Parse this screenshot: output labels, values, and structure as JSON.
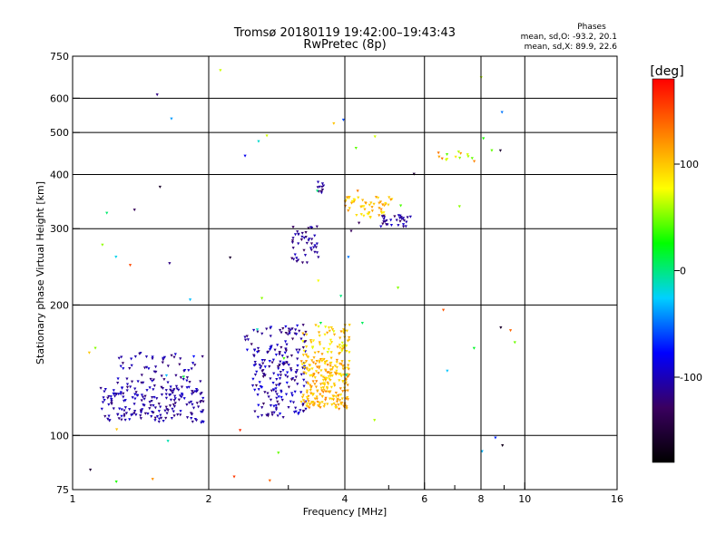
{
  "chart_data": {
    "type": "scatter",
    "title": "Tromsø 20180119 19:42:00–19:43:43",
    "subtitle": "RwPretec (8p)",
    "xlabel": "Frequency [MHz]",
    "ylabel": "Stationary phase Virtual Height [km]",
    "x_scale": "log",
    "y_scale": "log",
    "xlim": [
      1,
      16
    ],
    "ylim": [
      75,
      750
    ],
    "x_ticks": [
      1,
      2,
      4,
      6,
      8,
      10,
      16
    ],
    "x_tick_labels": [
      "1",
      "2",
      "4",
      "6",
      "8",
      "10",
      "16"
    ],
    "x_grid": [
      1,
      2,
      4,
      6,
      8,
      10
    ],
    "x_minor_ticks": [
      3,
      5,
      7,
      9
    ],
    "y_ticks": [
      75,
      100,
      200,
      300,
      400,
      500,
      600,
      750
    ],
    "y_tick_labels": [
      "75",
      "100",
      "200",
      "300",
      "400",
      "500",
      "600",
      "750"
    ],
    "y_grid": [
      100,
      200,
      300,
      400,
      500,
      600
    ],
    "grid": true,
    "stats_block": {
      "heading": "Phases",
      "line1": "mean, sd,O: -93.2, 20.1",
      "line2": "mean, sd,X:  89.9, 22.6"
    },
    "colorbar": {
      "label": "[deg]",
      "range": [
        -180,
        180
      ],
      "ticks": [
        100,
        0,
        -100
      ],
      "tick_labels": [
        "100",
        "0",
        "-100"
      ],
      "colors": [
        "#000000",
        "#3a0060",
        "#0000ff",
        "#00d0ff",
        "#00ff00",
        "#ffff00",
        "#ff8000",
        "#ff0000"
      ]
    },
    "clusters": [
      {
        "n": 190,
        "x": [
          1.15,
          1.95
        ],
        "y": [
          107,
          130
        ],
        "ph": [
          -125,
          -90
        ]
      },
      {
        "n": 60,
        "x": [
          1.25,
          1.95
        ],
        "y": [
          130,
          155
        ],
        "ph": [
          -125,
          -90
        ]
      },
      {
        "n": 160,
        "x": [
          2.5,
          3.3
        ],
        "y": [
          110,
          160
        ],
        "ph": [
          -130,
          -80
        ]
      },
      {
        "n": 50,
        "x": [
          2.4,
          3.3
        ],
        "y": [
          155,
          180
        ],
        "ph": [
          -130,
          -85
        ]
      },
      {
        "n": 220,
        "x": [
          3.2,
          4.1
        ],
        "y": [
          115,
          150
        ],
        "ph": [
          85,
          130
        ]
      },
      {
        "n": 70,
        "x": [
          3.2,
          4.1
        ],
        "y": [
          150,
          180
        ],
        "ph": [
          70,
          120
        ]
      },
      {
        "n": 45,
        "x": [
          3.05,
          3.5
        ],
        "y": [
          250,
          305
        ],
        "ph": [
          -130,
          -95
        ]
      },
      {
        "n": 10,
        "x": [
          3.48,
          3.6
        ],
        "y": [
          362,
          385
        ],
        "ph": [
          -130,
          -100
        ]
      },
      {
        "n": 55,
        "x": [
          4.0,
          5.1
        ],
        "y": [
          318,
          355
        ],
        "ph": [
          80,
          130
        ]
      },
      {
        "n": 30,
        "x": [
          4.8,
          5.6
        ],
        "y": [
          302,
          322
        ],
        "ph": [
          -130,
          -90
        ]
      },
      {
        "n": 14,
        "x": [
          6.4,
          7.8
        ],
        "y": [
          425,
          455
        ],
        "ph": [
          40,
          140
        ]
      },
      {
        "n": 65,
        "x": [
          1.02,
          9.8
        ],
        "y": [
          76,
          700
        ],
        "ph": [
          -170,
          170
        ]
      }
    ]
  }
}
